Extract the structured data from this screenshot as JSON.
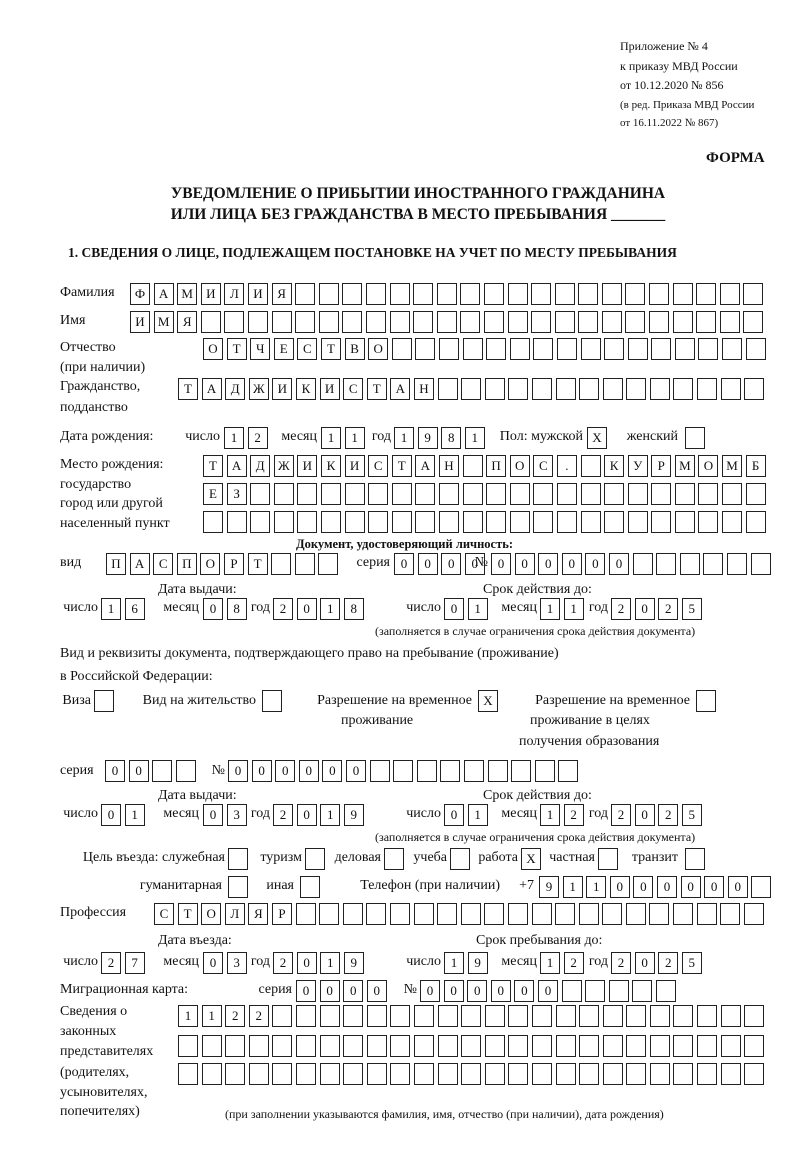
{
  "header": {
    "appendix": "Приложение № 4",
    "order": "к приказу МВД России",
    "order_date": "от 10.12.2020 № 856",
    "edition1": "(в ред. Приказа МВД России",
    "edition2": "от 16.11.2022 № 867)",
    "form": "ФОРМА",
    "title1": "УВЕДОМЛЕНИЕ О ПРИБЫТИИ ИНОСТРАННОГО ГРАЖДАНИНА",
    "title2": "ИЛИ ЛИЦА БЕЗ ГРАЖДАНСТВА В МЕСТО ПРЕБЫВАНИЯ _______",
    "section1": "1. СВЕДЕНИЯ О ЛИЦЕ, ПОДЛЕЖАЩЕМ ПОСТАНОВКЕ НА УЧЕТ ПО МЕСТУ ПРЕБЫВАНИЯ"
  },
  "labels": {
    "surname": "Фамилия",
    "name": "Имя",
    "patronymic": "Отчество",
    "patronymic_note": "(при наличии)",
    "citizenship": "Гражданство,",
    "citizenship2": "подданство",
    "birth_date": "Дата рождения:",
    "day": "число",
    "month": "месяц",
    "year": "год",
    "sex": "Пол: мужской",
    "female": "женский",
    "birthplace1": "Место рождения:",
    "birthplace2": "государство",
    "birthplace3": "город или другой",
    "birthplace4": "населенный пункт",
    "id_doc": "Документ, удостоверяющий личность:",
    "kind": "вид",
    "series": "серия",
    "number": "№",
    "issue_date": "Дата выдачи:",
    "valid_until": "Срок действия до:",
    "validity_note": "(заполняется в случае ограничения срока действия документа)",
    "right_doc1": "Вид и реквизиты документа, подтверждающего право на пребывание (проживание)",
    "right_doc2": "в Российской Федерации:",
    "visa": "Виза",
    "residence": "Вид на жительство",
    "trp1": "Разрешение на временное",
    "trp2": "проживание",
    "trpe1": "Разрешение на временное",
    "trpe2": "проживание в целях",
    "trpe3": "получения образования",
    "purpose": "Цель въезда: служебная",
    "tourism": "туризм",
    "business": "деловая",
    "study": "учеба",
    "work": "работа",
    "private": "частная",
    "transit": "транзит",
    "humanitarian": "гуманитарная",
    "other": "иная",
    "phone": "Телефон (при наличии)",
    "phone_prefix": "+7",
    "profession": "Профессия",
    "entry_date": "Дата въезда:",
    "stay_until": "Срок пребывания до:",
    "migration_card": "Миграционная карта:",
    "reps1": "Сведения о",
    "reps2": "законных",
    "reps3": "представителях",
    "reps4": "(родителях,",
    "reps5": "усыновителях,",
    "reps6": "попечителях)",
    "reps_note": "(при заполнении указываются фамилия, имя, отчество (при наличии), дата рождения)"
  },
  "person": {
    "surname": "ФАМИЛИЯ",
    "name": "ИМЯ",
    "patronymic": "ОТЧЕСТВО",
    "citizenship": "ТАДЖИКИСТАН",
    "birth_day": "12",
    "birth_month": "11",
    "birth_year": "1981",
    "male": "X",
    "female": "",
    "birthplace1": "ТАДЖИКИСТАН ПОС. КУРМОМБ",
    "birthplace2": "ЕЗ",
    "birthplace3": ""
  },
  "id_document": {
    "kind": "ПАСПОРТ",
    "series": "0000",
    "number": "000000",
    "issue_day": "16",
    "issue_month": "08",
    "issue_year": "2018",
    "valid_day": "01",
    "valid_month": "11",
    "valid_year": "2025"
  },
  "right_document": {
    "visa": "",
    "residence": "",
    "trp": "X",
    "trp_edu": "",
    "series": "00",
    "number": "000000",
    "issue_day": "01",
    "issue_month": "03",
    "issue_year": "2019",
    "valid_day": "01",
    "valid_month": "12",
    "valid_year": "2025"
  },
  "purpose": {
    "official": "",
    "tourism": "",
    "business": "",
    "study": "",
    "work": "X",
    "private": "",
    "transit": "",
    "humanitarian": "",
    "other": ""
  },
  "phone": "911000000",
  "profession": "СТОЛЯР",
  "entry": {
    "entry_day": "27",
    "entry_month": "03",
    "entry_year": "2019",
    "stay_day": "19",
    "stay_month": "12",
    "stay_year": "2025"
  },
  "migration_card": {
    "series": "0000",
    "number": "000000"
  },
  "representatives": {
    "line1": "1122",
    "line2": "",
    "line3": ""
  }
}
